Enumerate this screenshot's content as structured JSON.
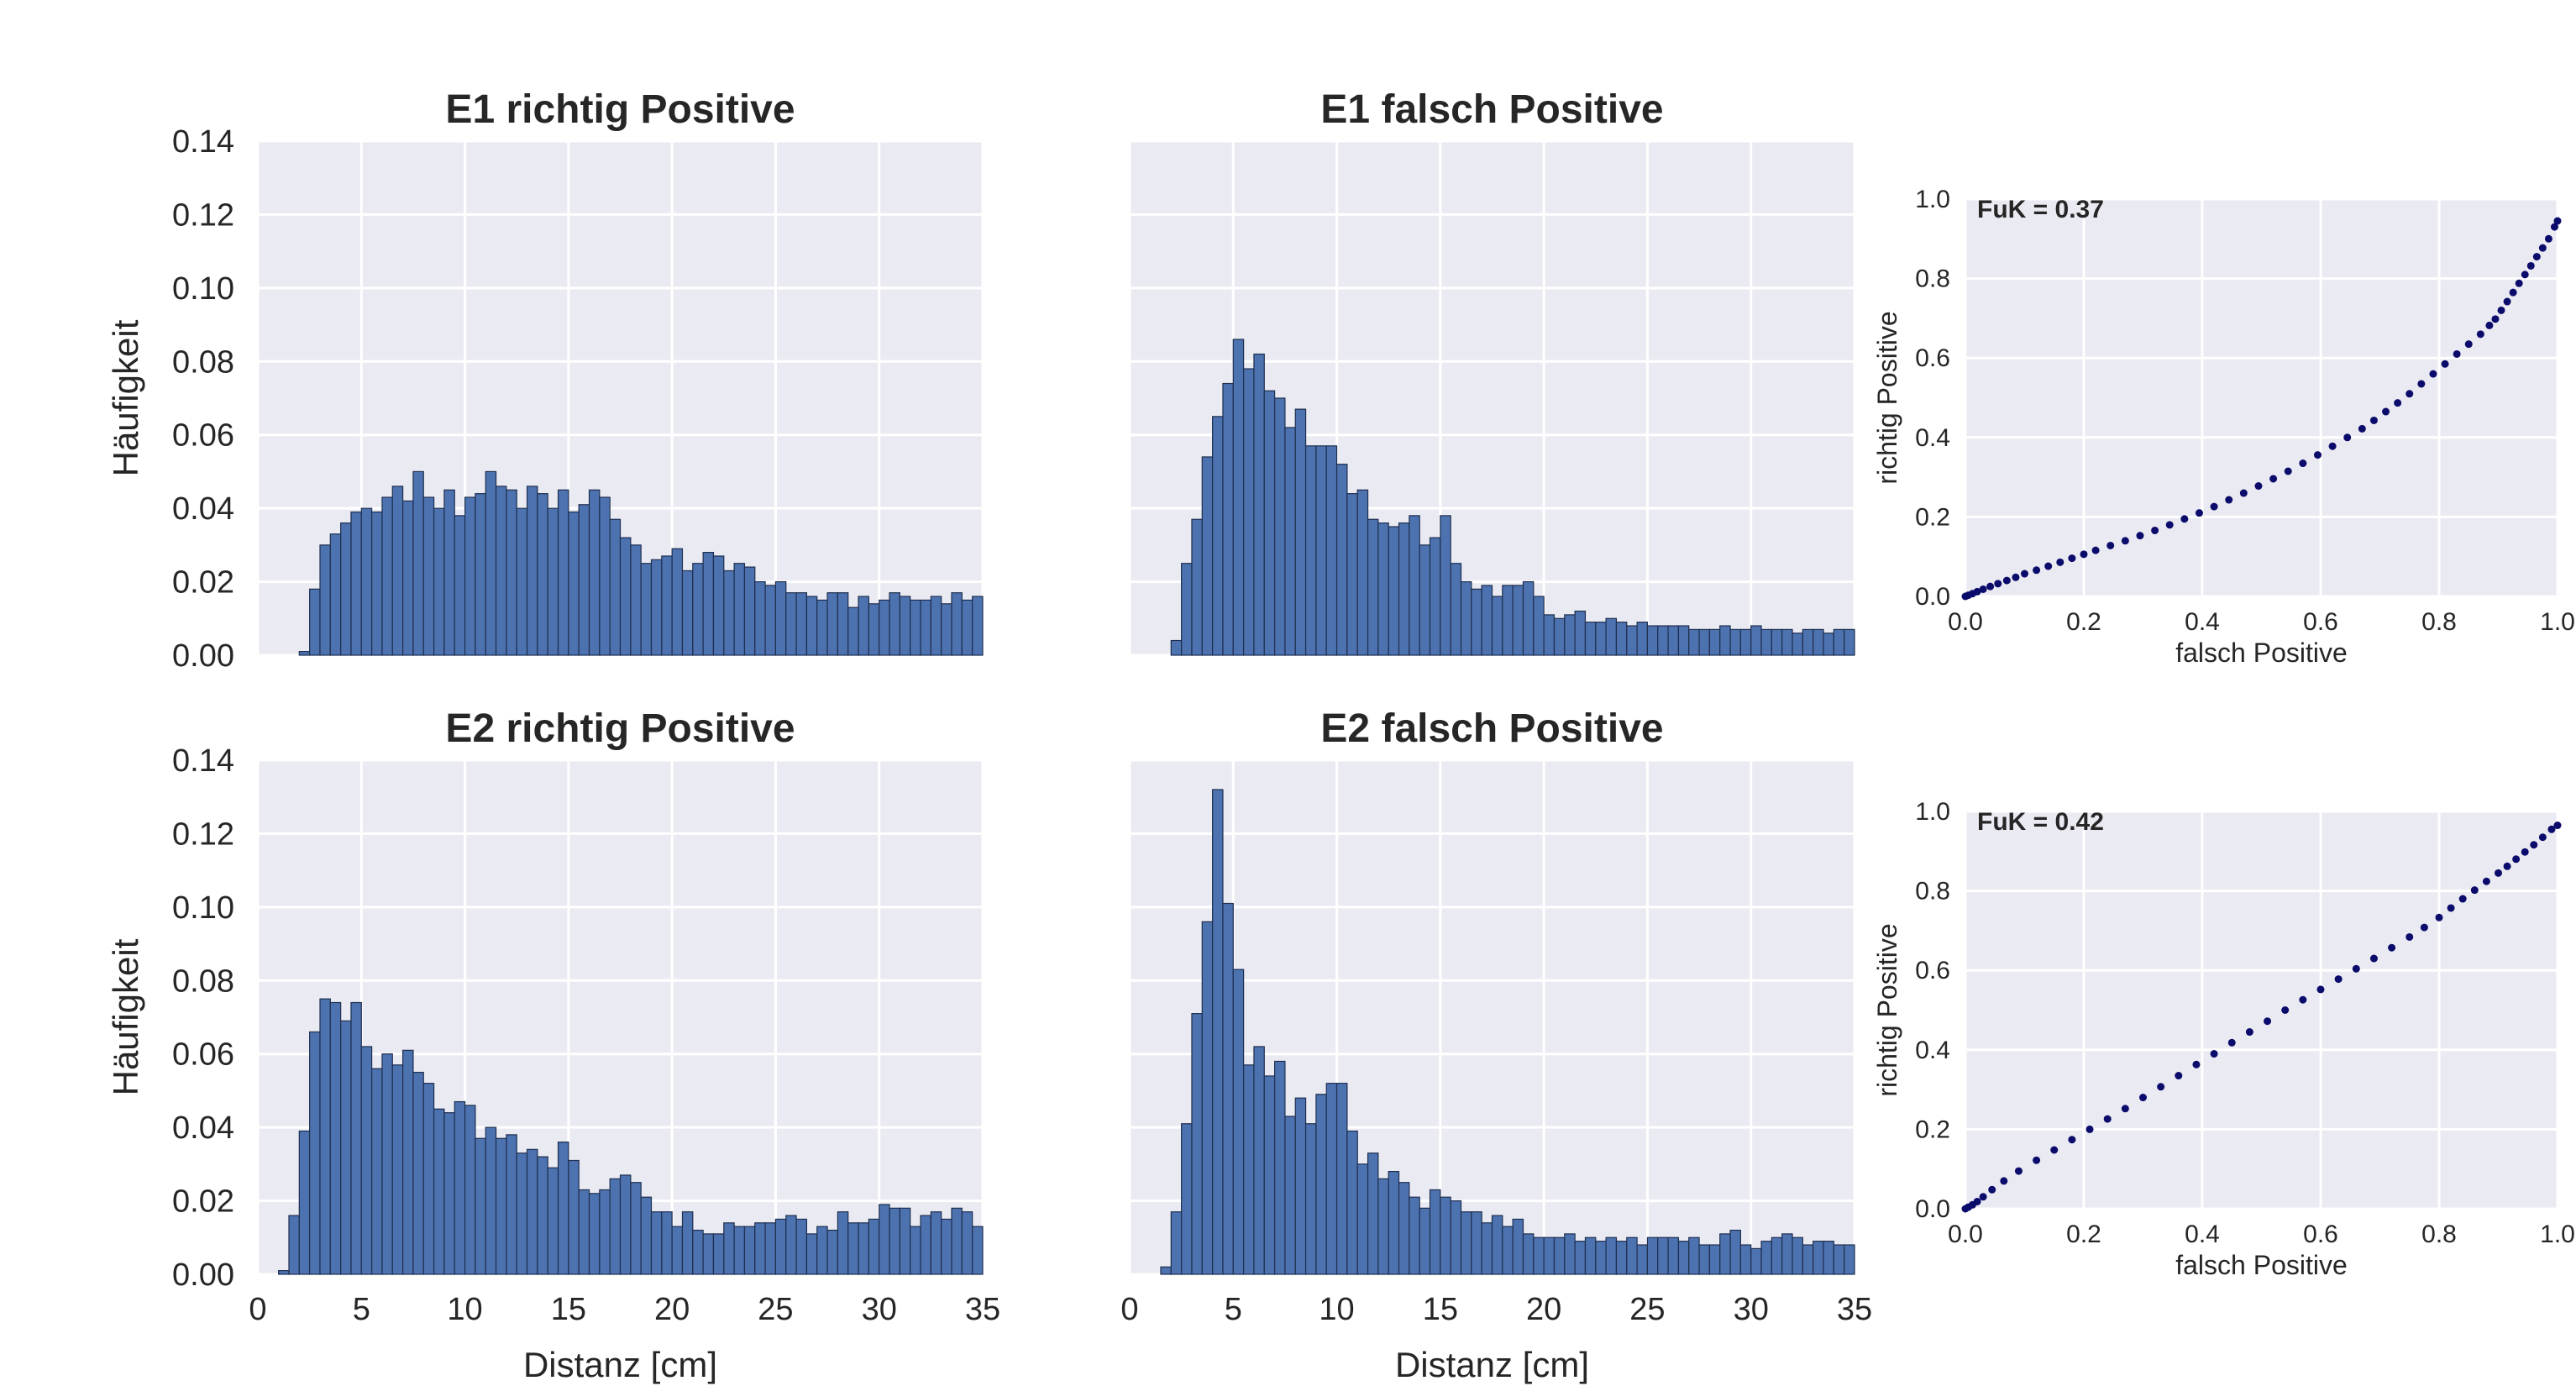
{
  "figure": {
    "histogram_labels": {
      "xlabel": "Distanz [cm]",
      "ylabel": "Häufigkeit"
    },
    "roc_labels": {
      "xlabel": "falsch Positive",
      "ylabel": "richtig Positive"
    },
    "colors": {
      "panel_bg": "#eaeaf2",
      "grid": "#ffffff",
      "bar_fill": "#4c72b0",
      "bar_edge": "#1f2f4f",
      "roc_points": "#0b0b6b",
      "text": "#262626"
    }
  },
  "chart_data": [
    {
      "type": "bar",
      "id": "e1-tp",
      "title": "E1 richtig Positive",
      "xlim": [
        0,
        35
      ],
      "ylim": [
        0,
        0.14
      ],
      "xticks": [
        "0",
        "5",
        "10",
        "15",
        "20",
        "25",
        "30",
        "35"
      ],
      "yticks": [
        "0.00",
        "0.02",
        "0.04",
        "0.06",
        "0.08",
        "0.10",
        "0.12",
        "0.14"
      ],
      "show_xticks": false,
      "show_yticks": true,
      "xlabel": "",
      "ylabel": "Häufigkeit",
      "bin_start": 0,
      "bin_width": 0.5,
      "values": [
        0,
        0,
        0,
        0,
        0.001,
        0.018,
        0.03,
        0.033,
        0.036,
        0.039,
        0.04,
        0.039,
        0.043,
        0.046,
        0.042,
        0.05,
        0.043,
        0.04,
        0.045,
        0.038,
        0.043,
        0.044,
        0.05,
        0.046,
        0.045,
        0.04,
        0.046,
        0.044,
        0.04,
        0.045,
        0.039,
        0.041,
        0.045,
        0.043,
        0.037,
        0.032,
        0.03,
        0.025,
        0.026,
        0.027,
        0.029,
        0.023,
        0.025,
        0.028,
        0.027,
        0.023,
        0.025,
        0.024,
        0.02,
        0.019,
        0.02,
        0.017,
        0.017,
        0.016,
        0.015,
        0.017,
        0.017,
        0.013,
        0.016,
        0.014,
        0.015,
        0.017,
        0.016,
        0.015,
        0.015,
        0.016,
        0.014,
        0.017,
        0.015,
        0.016
      ]
    },
    {
      "type": "bar",
      "id": "e1-fp",
      "title": "E1 falsch Positive",
      "xlim": [
        0,
        35
      ],
      "ylim": [
        0,
        0.14
      ],
      "xticks": [
        "0",
        "5",
        "10",
        "15",
        "20",
        "25",
        "30",
        "35"
      ],
      "yticks": [
        "0.00",
        "0.02",
        "0.04",
        "0.06",
        "0.08",
        "0.10",
        "0.12",
        "0.14"
      ],
      "show_xticks": false,
      "show_yticks": false,
      "xlabel": "",
      "ylabel": "",
      "bin_start": 0,
      "bin_width": 0.5,
      "values": [
        0,
        0,
        0,
        0,
        0.004,
        0.025,
        0.037,
        0.054,
        0.065,
        0.074,
        0.086,
        0.078,
        0.082,
        0.072,
        0.07,
        0.062,
        0.067,
        0.057,
        0.057,
        0.057,
        0.052,
        0.044,
        0.045,
        0.037,
        0.036,
        0.035,
        0.036,
        0.038,
        0.03,
        0.032,
        0.038,
        0.025,
        0.02,
        0.018,
        0.019,
        0.016,
        0.019,
        0.019,
        0.02,
        0.016,
        0.011,
        0.01,
        0.011,
        0.012,
        0.009,
        0.009,
        0.01,
        0.009,
        0.008,
        0.009,
        0.008,
        0.008,
        0.008,
        0.008,
        0.007,
        0.007,
        0.007,
        0.008,
        0.007,
        0.007,
        0.008,
        0.007,
        0.007,
        0.007,
        0.006,
        0.007,
        0.007,
        0.006,
        0.007,
        0.007
      ]
    },
    {
      "type": "scatter",
      "id": "e1-roc",
      "annotation": "FuK = 0.37",
      "xlabel": "falsch Positive",
      "ylabel": "richtig Positive",
      "xlim": [
        0,
        1
      ],
      "ylim": [
        0,
        1
      ],
      "xticks": [
        "0.0",
        "0.2",
        "0.4",
        "0.6",
        "0.8",
        "1.0"
      ],
      "yticks": [
        "0.0",
        "0.2",
        "0.4",
        "0.6",
        "0.8",
        "1.0"
      ],
      "x": [
        0.0,
        0.005,
        0.012,
        0.02,
        0.03,
        0.042,
        0.055,
        0.07,
        0.085,
        0.1,
        0.12,
        0.14,
        0.16,
        0.18,
        0.2,
        0.22,
        0.245,
        0.27,
        0.295,
        0.32,
        0.345,
        0.37,
        0.395,
        0.42,
        0.445,
        0.47,
        0.495,
        0.52,
        0.545,
        0.57,
        0.595,
        0.62,
        0.645,
        0.67,
        0.69,
        0.71,
        0.73,
        0.75,
        0.77,
        0.79,
        0.81,
        0.83,
        0.85,
        0.87,
        0.885,
        0.895,
        0.905,
        0.915,
        0.925,
        0.935,
        0.945,
        0.955,
        0.965,
        0.975,
        0.985,
        0.995,
        1.0
      ],
      "y": [
        0.0,
        0.003,
        0.007,
        0.012,
        0.018,
        0.025,
        0.032,
        0.04,
        0.048,
        0.057,
        0.066,
        0.076,
        0.086,
        0.096,
        0.106,
        0.116,
        0.128,
        0.14,
        0.153,
        0.166,
        0.18,
        0.195,
        0.21,
        0.226,
        0.243,
        0.26,
        0.278,
        0.296,
        0.315,
        0.335,
        0.356,
        0.378,
        0.4,
        0.422,
        0.443,
        0.465,
        0.487,
        0.51,
        0.535,
        0.56,
        0.585,
        0.61,
        0.635,
        0.66,
        0.682,
        0.698,
        0.72,
        0.742,
        0.765,
        0.788,
        0.81,
        0.832,
        0.855,
        0.877,
        0.9,
        0.93,
        0.945
      ]
    },
    {
      "type": "bar",
      "id": "e2-tp",
      "title": "E2 richtig Positive",
      "xlim": [
        0,
        35
      ],
      "ylim": [
        0,
        0.14
      ],
      "xticks": [
        "0",
        "5",
        "10",
        "15",
        "20",
        "25",
        "30",
        "35"
      ],
      "yticks": [
        "0.00",
        "0.02",
        "0.04",
        "0.06",
        "0.08",
        "0.10",
        "0.12",
        "0.14"
      ],
      "show_xticks": true,
      "show_yticks": true,
      "xlabel": "Distanz [cm]",
      "ylabel": "Häufigkeit",
      "bin_start": 0,
      "bin_width": 0.5,
      "values": [
        0,
        0,
        0.001,
        0.016,
        0.039,
        0.066,
        0.075,
        0.074,
        0.069,
        0.074,
        0.062,
        0.056,
        0.06,
        0.057,
        0.061,
        0.055,
        0.052,
        0.045,
        0.044,
        0.047,
        0.046,
        0.037,
        0.04,
        0.037,
        0.038,
        0.033,
        0.034,
        0.032,
        0.029,
        0.036,
        0.031,
        0.023,
        0.022,
        0.023,
        0.026,
        0.027,
        0.025,
        0.021,
        0.017,
        0.017,
        0.013,
        0.017,
        0.012,
        0.011,
        0.011,
        0.014,
        0.013,
        0.013,
        0.014,
        0.014,
        0.015,
        0.016,
        0.015,
        0.011,
        0.013,
        0.012,
        0.017,
        0.014,
        0.014,
        0.015,
        0.019,
        0.018,
        0.018,
        0.013,
        0.016,
        0.017,
        0.015,
        0.018,
        0.017,
        0.013
      ]
    },
    {
      "type": "bar",
      "id": "e2-fp",
      "title": "E2 falsch Positive",
      "xlim": [
        0,
        35
      ],
      "ylim": [
        0,
        0.14
      ],
      "xticks": [
        "0",
        "5",
        "10",
        "15",
        "20",
        "25",
        "30",
        "35"
      ],
      "yticks": [
        "0.00",
        "0.02",
        "0.04",
        "0.06",
        "0.08",
        "0.10",
        "0.12",
        "0.14"
      ],
      "show_xticks": true,
      "show_yticks": false,
      "xlabel": "Distanz [cm]",
      "ylabel": "",
      "bin_start": 0,
      "bin_width": 0.5,
      "values": [
        0,
        0,
        0,
        0.002,
        0.017,
        0.041,
        0.071,
        0.096,
        0.132,
        0.101,
        0.083,
        0.057,
        0.062,
        0.054,
        0.058,
        0.043,
        0.048,
        0.041,
        0.049,
        0.052,
        0.052,
        0.039,
        0.03,
        0.033,
        0.026,
        0.028,
        0.025,
        0.021,
        0.018,
        0.023,
        0.021,
        0.02,
        0.017,
        0.017,
        0.014,
        0.016,
        0.013,
        0.015,
        0.011,
        0.01,
        0.01,
        0.01,
        0.011,
        0.009,
        0.01,
        0.009,
        0.01,
        0.009,
        0.01,
        0.008,
        0.01,
        0.01,
        0.01,
        0.009,
        0.01,
        0.008,
        0.008,
        0.011,
        0.012,
        0.008,
        0.007,
        0.009,
        0.01,
        0.011,
        0.01,
        0.008,
        0.009,
        0.009,
        0.008,
        0.008
      ]
    },
    {
      "type": "scatter",
      "id": "e2-roc",
      "annotation": "FuK = 0.42",
      "xlabel": "falsch Positive",
      "ylabel": "richtig Positive",
      "xlim": [
        0,
        1
      ],
      "ylim": [
        0,
        1
      ],
      "xticks": [
        "0.0",
        "0.2",
        "0.4",
        "0.6",
        "0.8",
        "1.0"
      ],
      "yticks": [
        "0.0",
        "0.2",
        "0.4",
        "0.6",
        "0.8",
        "1.0"
      ],
      "x": [
        0.0,
        0.005,
        0.012,
        0.02,
        0.03,
        0.045,
        0.065,
        0.09,
        0.12,
        0.15,
        0.18,
        0.21,
        0.24,
        0.27,
        0.3,
        0.33,
        0.36,
        0.39,
        0.42,
        0.45,
        0.48,
        0.51,
        0.54,
        0.57,
        0.6,
        0.63,
        0.66,
        0.69,
        0.72,
        0.75,
        0.775,
        0.8,
        0.82,
        0.84,
        0.86,
        0.88,
        0.9,
        0.915,
        0.93,
        0.945,
        0.96,
        0.975,
        0.99,
        1.0
      ],
      "y": [
        0.0,
        0.004,
        0.01,
        0.018,
        0.03,
        0.048,
        0.07,
        0.095,
        0.122,
        0.148,
        0.174,
        0.2,
        0.226,
        0.252,
        0.28,
        0.307,
        0.335,
        0.363,
        0.39,
        0.418,
        0.445,
        0.472,
        0.5,
        0.526,
        0.552,
        0.578,
        0.604,
        0.63,
        0.657,
        0.684,
        0.708,
        0.733,
        0.757,
        0.78,
        0.802,
        0.824,
        0.845,
        0.862,
        0.88,
        0.898,
        0.916,
        0.935,
        0.955,
        0.965
      ]
    }
  ]
}
